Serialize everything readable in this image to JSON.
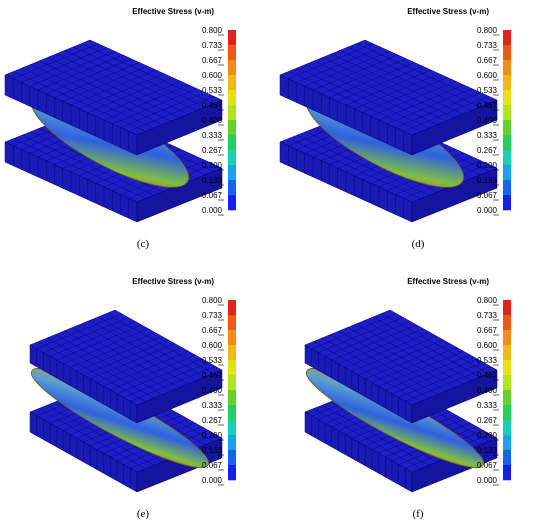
{
  "panels": [
    {
      "label": "(c)",
      "legend_title": "Effective Stress (v-m)",
      "legend_ticks": [
        "0.800",
        "0.733",
        "0.667",
        "0.600",
        "0.533",
        "0.467",
        "0.400",
        "0.333",
        "0.267",
        "0.200",
        "0.133",
        "0.067",
        "0.000"
      ]
    },
    {
      "label": "(d)",
      "legend_title": "Effective Stress (v-m)",
      "legend_ticks": [
        "0.800",
        "0.733",
        "0.667",
        "0.600",
        "0.533",
        "0.467",
        "0.400",
        "0.333",
        "0.267",
        "0.200",
        "0.133",
        "0.067",
        "0.000"
      ]
    },
    {
      "label": "(e)",
      "legend_title": "Effective Stress (v-m)",
      "legend_ticks": [
        "0.800",
        "0.733",
        "0.667",
        "0.600",
        "0.533",
        "0.467",
        "0.400",
        "0.333",
        "0.267",
        "0.200",
        "0.133",
        "0.067",
        "0.000"
      ]
    },
    {
      "label": "(f)",
      "legend_title": "Effective Stress (v-m)",
      "legend_ticks": [
        "0.800",
        "0.733",
        "0.667",
        "0.600",
        "0.533",
        "0.467",
        "0.400",
        "0.333",
        "0.267",
        "0.200",
        "0.133",
        "0.067",
        "0.000"
      ]
    }
  ]
}
